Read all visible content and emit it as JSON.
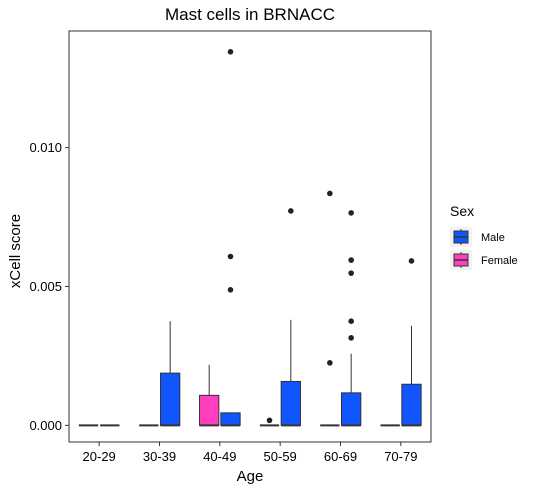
{
  "chart_data": {
    "type": "box",
    "title": "Mast cells in BRNACC",
    "xlabel": "Age",
    "ylabel": "xCell score",
    "categories": [
      "20-29",
      "30-39",
      "40-49",
      "50-59",
      "60-69",
      "70-79"
    ],
    "ylim": [
      -0.0006,
      0.0142
    ],
    "yticks": [
      0.0,
      0.005,
      0.01
    ],
    "ytick_labels": [
      "0.000",
      "0.005",
      "0.010"
    ],
    "grid": false,
    "legend": {
      "title": "Sex",
      "placement": "right",
      "entries": [
        {
          "name": "Male",
          "color": "#1155ff"
        },
        {
          "name": "Female",
          "color": "#ff3fc0"
        }
      ]
    },
    "series": [
      {
        "name": "Male",
        "color": "#1155ff",
        "boxes": [
          {
            "category": "20-29",
            "min": 0,
            "q1": 0,
            "median": 0,
            "q3": 0,
            "max": 0,
            "outliers": []
          },
          {
            "category": "30-39",
            "min": 0,
            "q1": 0,
            "median": 0,
            "q3": 0.00188,
            "max": 0.00375,
            "outliers": []
          },
          {
            "category": "40-49",
            "min": 0,
            "q1": 0,
            "median": 0,
            "q3": 0.00045,
            "max": 0.00045,
            "outliers": [
              0.00488,
              0.00608,
              0.01345
            ]
          },
          {
            "category": "50-59",
            "min": 0,
            "q1": 0,
            "median": 0,
            "q3": 0.00158,
            "max": 0.0038,
            "outliers": [
              0.00772
            ]
          },
          {
            "category": "60-69",
            "min": 0,
            "q1": 0,
            "median": 0,
            "q3": 0.00117,
            "max": 0.00258,
            "outliers": [
              0.00315,
              0.00375,
              0.00548,
              0.00595,
              0.00765
            ]
          },
          {
            "category": "70-79",
            "min": 0,
            "q1": 0,
            "median": 0,
            "q3": 0.00148,
            "max": 0.00358,
            "outliers": [
              0.00592
            ]
          }
        ]
      },
      {
        "name": "Female",
        "color": "#ff3fc0",
        "boxes": [
          {
            "category": "20-29",
            "min": 0,
            "q1": 0,
            "median": 0,
            "q3": 0,
            "max": 0,
            "outliers": []
          },
          {
            "category": "30-39",
            "min": 0,
            "q1": 0,
            "median": 0,
            "q3": 0,
            "max": 0,
            "outliers": []
          },
          {
            "category": "40-49",
            "min": 0,
            "q1": 0,
            "median": 0,
            "q3": 0.00108,
            "max": 0.00218,
            "outliers": []
          },
          {
            "category": "50-59",
            "min": 0,
            "q1": 0,
            "median": 0,
            "q3": 0,
            "max": 0,
            "outliers": [
              0.00018
            ]
          },
          {
            "category": "60-69",
            "min": 0,
            "q1": 0,
            "median": 0,
            "q3": 0,
            "max": 0,
            "outliers": [
              0.00225,
              0.00835
            ]
          },
          {
            "category": "70-79",
            "min": 0,
            "q1": 0,
            "median": 0,
            "q3": 0,
            "max": 0,
            "outliers": []
          }
        ]
      }
    ]
  }
}
